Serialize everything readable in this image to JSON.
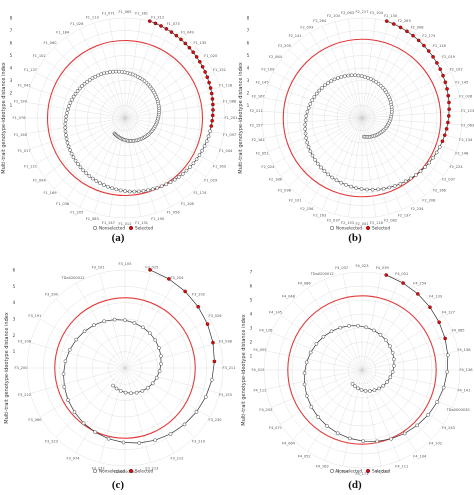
{
  "legend_colors": {
    "nonselected": "#ffffff",
    "nonselected_edge": "#333333",
    "selected": "#cc1111",
    "threshold": "#e23b3b",
    "grid": "#cfcfcf"
  },
  "chart_data": [
    {
      "panel": "(a)",
      "type": "scatter",
      "coordinate_system": "polar",
      "ylabel": "Multi-trait genotype-ideotype distance index",
      "legend": [
        "Nonselected",
        "Selected"
      ],
      "rlim": [
        0,
        8
      ],
      "r_ticks": [
        1,
        2,
        3,
        4,
        5,
        6,
        7,
        8
      ],
      "threshold_r": 6.2,
      "n_points": 160,
      "n_selected": 24,
      "r_start": 1.5,
      "r_end": 8.0,
      "total_turn_deg": 560,
      "angular_tick_labels": [
        "F1_065",
        "F1_181",
        "F1_212",
        "F1_073",
        "F1_049",
        "F1_135",
        "F1_020",
        "F1_152",
        "F1_118",
        "F1_088",
        "F1_201",
        "F1_097",
        "F1_044",
        "F1_163",
        "F1_029",
        "F1_174",
        "F1_108",
        "F1_056",
        "F1_190",
        "F1_131",
        "F1_012",
        "F1_147",
        "F1_083",
        "F1_205",
        "F1_038",
        "F1_169",
        "F1_094",
        "F1_121",
        "F1_017",
        "F1_158",
        "F1_076",
        "F1_199",
        "F1_041",
        "F1_137",
        "F1_102",
        "F1_060",
        "F1_184",
        "F1_026",
        "F1_113",
        "F1_071"
      ]
    },
    {
      "panel": "(b)",
      "type": "scatter",
      "coordinate_system": "polar",
      "ylabel": "Multi-trait genotype-ideotype distance index",
      "legend": [
        "Nonselected",
        "Selected"
      ],
      "rlim": [
        0,
        8
      ],
      "r_ticks": [
        1,
        2,
        3,
        4,
        5,
        6,
        7,
        8
      ],
      "threshold_r": 6.3,
      "n_points": 120,
      "n_selected": 22,
      "r_start": 1.5,
      "r_end": 8.0,
      "total_turn_deg": 520,
      "angular_tick_labels": [
        "F2_217",
        "F2_104",
        "F2_130",
        "F2_263",
        "F2_008",
        "F2_174",
        "F2_116",
        "F2_019",
        "F2_102",
        "F2_145",
        "F2_026",
        "F2_123",
        "F2_063",
        "F2_134",
        "F2_148",
        "F2_224",
        "F2_037",
        "F2_166",
        "F2_208",
        "F2_234",
        "F2_137",
        "F2_082",
        "F2_116",
        "F2_041",
        "F2_153",
        "F2_037",
        "F2_163",
        "F2_256",
        "F2_101",
        "F2_096",
        "F2_186",
        "F2_024",
        "F2_051",
        "F2_181",
        "F2_157",
        "F2_211",
        "F2_167",
        "F2_145",
        "F2_109",
        "F2_064",
        "F2_205",
        "F2_141",
        "F2_093",
        "F2_264",
        "F2_104",
        "F2_063"
      ]
    },
    {
      "panel": "(c)",
      "type": "scatter",
      "coordinate_system": "polar",
      "ylabel": "Multi-trait genotype-ideotype distance index",
      "legend": [
        "Nonselected",
        "Selected"
      ],
      "rlim": [
        0,
        6
      ],
      "r_ticks": [
        1,
        2,
        3,
        4,
        5,
        6
      ],
      "threshold_r": 4.3,
      "n_points": 48,
      "n_selected": 7,
      "r_start": 1.3,
      "r_end": 6.2,
      "total_turn_deg": 560,
      "angular_tick_labels": [
        "F3_105",
        "F3_025",
        "F3_204",
        "F3_202",
        "F3_026",
        "F3_038",
        "F3_211",
        "F3_153",
        "F3_230",
        "F3_219",
        "F3_212",
        "F3_213",
        "TDa0000020",
        "F3_273",
        "F3_074",
        "F3_223",
        "F3_060",
        "F3_222",
        "F3_200",
        "F3_106",
        "F3_191",
        "F3_290",
        "TDa0200012",
        "F3_101"
      ]
    },
    {
      "panel": "(d)",
      "type": "scatter",
      "coordinate_system": "polar",
      "ylabel": "Multi-trait genotype-ideotype distance index",
      "legend": [
        "Nonselected",
        "Selected"
      ],
      "rlim": [
        0,
        7
      ],
      "r_ticks": [
        1,
        2,
        3,
        4,
        5,
        6,
        7
      ],
      "threshold_r": 5.3,
      "n_points": 52,
      "n_selected": 6,
      "r_start": 1.2,
      "r_end": 7.0,
      "total_turn_deg": 560,
      "angular_tick_labels": [
        "F4_023",
        "F4_039",
        "F4_051",
        "F4_254",
        "F4_133",
        "F4_127",
        "F4_085",
        "F4_138",
        "F4_136",
        "F4_141",
        "TDa0000035",
        "F4_243",
        "F4_102",
        "F4_104",
        "F4_111",
        "F4_240",
        "F4_173",
        "F4_219",
        "F4_163",
        "F4_052",
        "F4_064",
        "F4_071",
        "F4_203",
        "F4_112",
        "F4_015",
        "F4_055",
        "F4_126",
        "F4_145",
        "F4_048",
        "F4_086",
        "TDa0200012",
        "F4_037"
      ]
    }
  ]
}
